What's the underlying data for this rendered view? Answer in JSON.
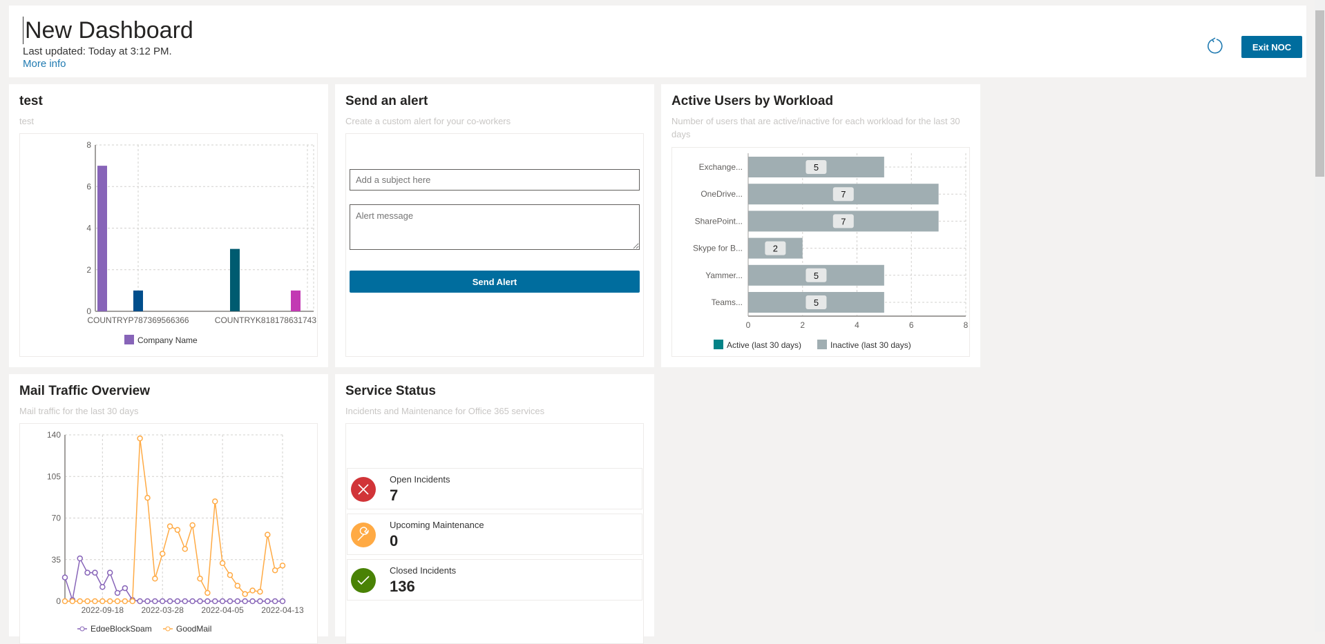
{
  "header": {
    "title": "New Dashboard",
    "last_updated": "Last updated: Today at 3:12 PM.",
    "more_info": "More info",
    "exit_label": "Exit NOC",
    "refresh_icon": "refresh-icon",
    "accent": "#006d9e"
  },
  "panels": {
    "test": {
      "title": "test",
      "subtitle": "test"
    },
    "alert": {
      "title": "Send an alert",
      "subtitle": "Create a custom alert for your co-workers",
      "subject_placeholder": "Add a subject here",
      "message_placeholder": "Alert message",
      "send_label": "Send Alert"
    },
    "users": {
      "title": "Active Users by Workload",
      "subtitle": "Number of users that are active/inactive for each workload for the last 30 days"
    },
    "mail": {
      "title": "Mail Traffic Overview",
      "subtitle": "Mail traffic for the last 30 days"
    },
    "status": {
      "title": "Service Status",
      "subtitle": "Incidents and Maintenance for Office 365 services",
      "items": [
        {
          "label": "Open Incidents",
          "value": "7",
          "icon": "close-icon",
          "color": "#d13438"
        },
        {
          "label": "Upcoming Maintenance",
          "value": "0",
          "icon": "wrench-icon",
          "color": "#ffaa44"
        },
        {
          "label": "Closed Incidents",
          "value": "136",
          "icon": "checkmark-icon",
          "color": "#498205"
        }
      ]
    }
  },
  "chart_data": [
    {
      "type": "bar",
      "title": "test",
      "ylim": [
        0,
        8
      ],
      "yticks": [
        0,
        2,
        4,
        6,
        8
      ],
      "tick_labels": [
        "COUNTRYP787369566366",
        "COUNTRYK818178631743"
      ],
      "bars": [
        {
          "value": 7,
          "color": "#8764b8"
        },
        {
          "value": 1,
          "color": "#004e8c"
        },
        {
          "value": 3,
          "color": "#005b70"
        },
        {
          "value": 1,
          "color": "#c239b3"
        }
      ],
      "legend": [
        {
          "name": "Company Name",
          "color": "#8764b8"
        }
      ],
      "legend_position": "bottom",
      "grid": true
    },
    {
      "type": "bar",
      "orientation": "horizontal",
      "stacked": true,
      "title": "Active Users by Workload",
      "xlim": [
        0,
        8
      ],
      "xticks": [
        0,
        2,
        4,
        6,
        8
      ],
      "categories": [
        "Exchange...",
        "OneDrive...",
        "SharePoint...",
        "Skype for B...",
        "Yammer...",
        "Teams..."
      ],
      "series": [
        {
          "name": "Active (last 30 days)",
          "color": "#038387",
          "values": [
            0,
            0,
            0,
            0,
            0,
            0
          ]
        },
        {
          "name": "Inactive (last 30 days)",
          "color": "#a0aeb2",
          "values": [
            5,
            7,
            7,
            2,
            5,
            5
          ]
        }
      ],
      "legend_position": "bottom",
      "grid": true
    },
    {
      "type": "line",
      "title": "Mail Traffic Overview",
      "ylim": [
        0,
        140
      ],
      "yticks": [
        0,
        35,
        70,
        105,
        140
      ],
      "x_tick_labels": [
        "2022-09-18",
        "2022-03-28",
        "2022-04-05",
        "2022-04-13"
      ],
      "series": [
        {
          "name": "EdgeBlockSpam",
          "color": "#8764b8",
          "values": [
            20,
            1,
            36,
            24,
            24,
            12,
            24,
            7,
            11,
            1,
            0,
            0,
            0,
            0,
            0,
            0,
            0,
            0,
            0,
            0,
            0,
            0,
            0,
            0,
            0,
            0,
            0,
            0,
            0,
            0
          ]
        },
        {
          "name": "GoodMail",
          "color": "#ffaa44",
          "values": [
            0,
            0,
            0,
            0,
            0,
            0,
            0,
            0,
            0,
            0,
            137,
            87,
            19,
            40,
            63,
            60,
            44,
            64,
            19,
            7,
            84,
            32,
            22,
            13,
            6,
            9,
            8,
            56,
            26,
            30
          ]
        }
      ],
      "legend_position": "bottom",
      "grid": true
    }
  ]
}
